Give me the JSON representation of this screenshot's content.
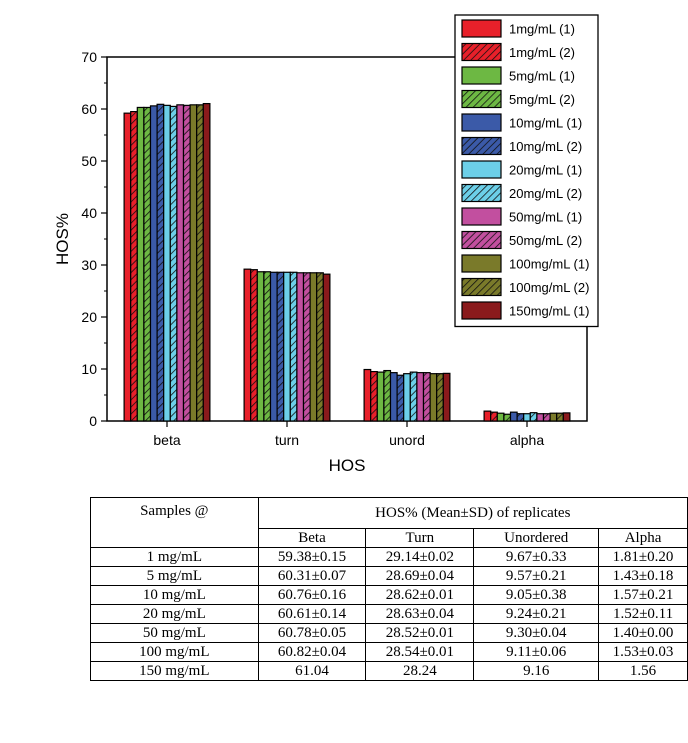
{
  "chart_data": {
    "type": "bar",
    "xlabel": "HOS",
    "ylabel": "HOS%",
    "ylim": [
      0,
      70
    ],
    "yticks": [
      0,
      10,
      20,
      30,
      40,
      50,
      60,
      70
    ],
    "categories": [
      "beta",
      "turn",
      "unord",
      "alpha"
    ],
    "legend_position": "top-right",
    "series": [
      {
        "name": "1mg/mL (1)",
        "color": "#e8202a",
        "hatch": false,
        "values": [
          59.2,
          29.2,
          9.9,
          1.9
        ]
      },
      {
        "name": "1mg/mL (2)",
        "color": "#e8202a",
        "hatch": true,
        "values": [
          59.5,
          29.1,
          9.5,
          1.7
        ]
      },
      {
        "name": "5mg/mL (1)",
        "color": "#6db843",
        "hatch": false,
        "values": [
          60.3,
          28.7,
          9.4,
          1.5
        ]
      },
      {
        "name": "5mg/mL (2)",
        "color": "#6db843",
        "hatch": true,
        "values": [
          60.3,
          28.7,
          9.7,
          1.3
        ]
      },
      {
        "name": "10mg/mL (1)",
        "color": "#3b5aa8",
        "hatch": false,
        "values": [
          60.6,
          28.6,
          9.3,
          1.7
        ]
      },
      {
        "name": "10mg/mL (2)",
        "color": "#3b5aa8",
        "hatch": true,
        "values": [
          60.9,
          28.6,
          8.8,
          1.4
        ]
      },
      {
        "name": "20mg/mL (1)",
        "color": "#6ccfe8",
        "hatch": false,
        "values": [
          60.7,
          28.6,
          9.1,
          1.4
        ]
      },
      {
        "name": "20mg/mL (2)",
        "color": "#6ccfe8",
        "hatch": true,
        "values": [
          60.5,
          28.6,
          9.4,
          1.6
        ]
      },
      {
        "name": "50mg/mL (1)",
        "color": "#c24f9f",
        "hatch": false,
        "values": [
          60.8,
          28.5,
          9.3,
          1.4
        ]
      },
      {
        "name": "50mg/mL (2)",
        "color": "#c24f9f",
        "hatch": true,
        "values": [
          60.7,
          28.5,
          9.3,
          1.4
        ]
      },
      {
        "name": "100mg/mL (1)",
        "color": "#7a7a2a",
        "hatch": false,
        "values": [
          60.8,
          28.5,
          9.1,
          1.5
        ]
      },
      {
        "name": "100mg/mL (2)",
        "color": "#7a7a2a",
        "hatch": true,
        "values": [
          60.8,
          28.5,
          9.1,
          1.5
        ]
      },
      {
        "name": "150mg/mL (1)",
        "color": "#8a1a1c",
        "hatch": false,
        "values": [
          61.04,
          28.24,
          9.16,
          1.56
        ]
      }
    ]
  },
  "table": {
    "samples_header": "Samples @",
    "group_header": "HOS% (Mean±SD) of replicates",
    "columns": [
      "Beta",
      "Turn",
      "Unordered",
      "Alpha"
    ],
    "rows": [
      {
        "sample": "1 mg/mL",
        "values": [
          "59.38±0.15",
          "29.14±0.02",
          "9.67±0.33",
          "1.81±0.20"
        ]
      },
      {
        "sample": "5 mg/mL",
        "values": [
          "60.31±0.07",
          "28.69±0.04",
          "9.57±0.21",
          "1.43±0.18"
        ]
      },
      {
        "sample": "10 mg/mL",
        "values": [
          "60.76±0.16",
          "28.62±0.01",
          "9.05±0.38",
          "1.57±0.21"
        ]
      },
      {
        "sample": "20 mg/mL",
        "values": [
          "60.61±0.14",
          "28.63±0.04",
          "9.24±0.21",
          "1.52±0.11"
        ]
      },
      {
        "sample": "50 mg/mL",
        "values": [
          "60.78±0.05",
          "28.52±0.01",
          "9.30±0.04",
          "1.40±0.00"
        ]
      },
      {
        "sample": "100 mg/mL",
        "values": [
          "60.82±0.04",
          "28.54±0.01",
          "9.11±0.06",
          "1.53±0.03"
        ]
      },
      {
        "sample": "150 mg/mL",
        "values": [
          "61.04",
          "28.24",
          "9.16",
          "1.56"
        ]
      }
    ]
  }
}
